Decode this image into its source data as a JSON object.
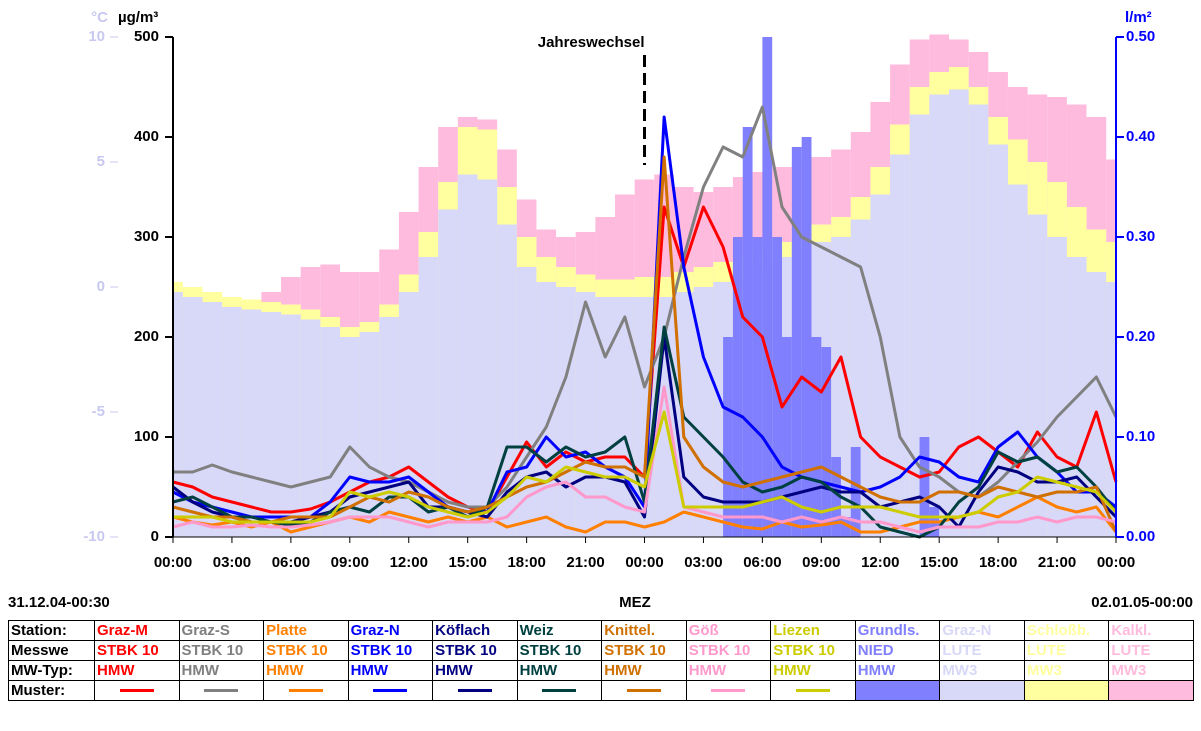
{
  "chart_data": {
    "type": "line",
    "annotation": "Jahreswechsel",
    "annotation_x": 24,
    "y_unit": "µg/m³",
    "y2_unit": "l/m²",
    "y3_unit": "°C",
    "x_label": "MEZ",
    "start_label": "31.12.04-00:30",
    "end_label": "02.01.05-00:00",
    "xlim": [
      0,
      48
    ],
    "xticks": [
      {
        "value": 0,
        "label": "00:00"
      },
      {
        "value": 3,
        "label": "03:00"
      },
      {
        "value": 6,
        "label": "06:00"
      },
      {
        "value": 9,
        "label": "09:00"
      },
      {
        "value": 12,
        "label": "12:00"
      },
      {
        "value": 15,
        "label": "15:00"
      },
      {
        "value": 18,
        "label": "18:00"
      },
      {
        "value": 21,
        "label": "21:00"
      },
      {
        "value": 24,
        "label": "00:00"
      },
      {
        "value": 27,
        "label": "03:00"
      },
      {
        "value": 30,
        "label": "06:00"
      },
      {
        "value": 33,
        "label": "09:00"
      },
      {
        "value": 36,
        "label": "12:00"
      },
      {
        "value": 39,
        "label": "15:00"
      },
      {
        "value": 42,
        "label": "18:00"
      },
      {
        "value": 45,
        "label": "21:00"
      },
      {
        "value": 48,
        "label": "00:00"
      }
    ],
    "ylim": [
      0,
      500
    ],
    "yticks": [
      0,
      100,
      200,
      300,
      400,
      500
    ],
    "y2lim": [
      0,
      0.5
    ],
    "y2ticks": [
      {
        "value": 0,
        "label": "0.00"
      },
      {
        "value": 0.1,
        "label": "0.10"
      },
      {
        "value": 0.2,
        "label": "0.20"
      },
      {
        "value": 0.3,
        "label": "0.30"
      },
      {
        "value": 0.4,
        "label": "0.40"
      },
      {
        "value": 0.5,
        "label": "0.50"
      }
    ],
    "y3lim": [
      -10,
      10
    ],
    "y3ticks": [
      -10,
      -5,
      0,
      5,
      10
    ],
    "x": [
      0,
      1,
      2,
      3,
      4,
      5,
      6,
      7,
      8,
      9,
      10,
      11,
      12,
      13,
      14,
      15,
      16,
      17,
      18,
      19,
      20,
      21,
      22,
      23,
      24,
      25,
      26,
      27,
      28,
      29,
      30,
      31,
      32,
      33,
      34,
      35,
      36,
      37,
      38,
      39,
      40,
      41,
      42,
      43,
      44,
      45,
      46,
      47,
      48
    ],
    "table_labels": [
      "Station:",
      "Messwe",
      "MW-Typ:",
      "Muster:"
    ],
    "series": [
      {
        "name": "Graz-M",
        "measure": "STBK 10",
        "mw_type": "HMW",
        "color": "#ff0000",
        "kind": "line",
        "values": [
          55,
          50,
          40,
          35,
          30,
          25,
          25,
          28,
          35,
          45,
          55,
          60,
          70,
          55,
          40,
          30,
          25,
          60,
          95,
          70,
          85,
          75,
          80,
          80,
          60,
          330,
          270,
          330,
          290,
          220,
          200,
          130,
          160,
          145,
          180,
          100,
          80,
          70,
          60,
          65,
          90,
          100,
          85,
          70,
          105,
          80,
          70,
          125,
          55
        ]
      },
      {
        "name": "Graz-S",
        "measure": "STBK 10",
        "mw_type": "HMW",
        "color": "#808080",
        "kind": "line",
        "values": [
          65,
          65,
          72,
          65,
          60,
          55,
          50,
          55,
          60,
          90,
          70,
          60,
          55,
          45,
          35,
          30,
          30,
          50,
          80,
          110,
          160,
          235,
          180,
          220,
          150,
          200,
          280,
          350,
          390,
          380,
          430,
          330,
          300,
          290,
          280,
          270,
          200,
          100,
          70,
          60,
          45,
          40,
          55,
          75,
          95,
          120,
          140,
          160,
          120
        ]
      },
      {
        "name": "Platte",
        "measure": "STBK 10",
        "mw_type": "HMW",
        "color": "#ff8000",
        "kind": "line",
        "values": [
          20,
          15,
          12,
          15,
          10,
          15,
          5,
          10,
          15,
          20,
          15,
          25,
          20,
          15,
          20,
          15,
          20,
          10,
          15,
          20,
          10,
          5,
          15,
          15,
          10,
          15,
          25,
          20,
          15,
          10,
          8,
          15,
          10,
          12,
          15,
          5,
          5,
          10,
          15,
          15,
          20,
          25,
          20,
          30,
          40,
          30,
          25,
          30,
          5
        ]
      },
      {
        "name": "Graz-N",
        "measure": "STBK 10",
        "mw_type": "HMW",
        "color": "#0000ff",
        "kind": "line",
        "values": [
          45,
          35,
          30,
          25,
          20,
          20,
          20,
          20,
          35,
          60,
          55,
          55,
          60,
          45,
          30,
          25,
          25,
          65,
          70,
          100,
          80,
          85,
          70,
          60,
          30,
          420,
          270,
          180,
          130,
          120,
          100,
          70,
          60,
          55,
          50,
          45,
          50,
          60,
          80,
          75,
          60,
          55,
          90,
          105,
          80,
          65,
          45,
          45,
          30
        ]
      },
      {
        "name": "Köflach",
        "measure": "STBK 10",
        "mw_type": "HMW",
        "color": "#000080",
        "kind": "line",
        "values": [
          50,
          35,
          25,
          20,
          15,
          15,
          15,
          20,
          25,
          40,
          45,
          50,
          55,
          30,
          30,
          25,
          20,
          45,
          60,
          65,
          50,
          60,
          60,
          55,
          20,
          200,
          60,
          40,
          35,
          35,
          35,
          40,
          45,
          50,
          45,
          45,
          30,
          35,
          40,
          30,
          10,
          45,
          70,
          65,
          55,
          55,
          60,
          40,
          20
        ]
      },
      {
        "name": "Weiz",
        "measure": "STBK 10",
        "mw_type": "HMW",
        "color": "#004040",
        "kind": "line",
        "values": [
          35,
          40,
          30,
          20,
          20,
          15,
          12,
          15,
          25,
          30,
          25,
          40,
          40,
          25,
          30,
          20,
          30,
          90,
          90,
          75,
          90,
          80,
          85,
          100,
          35,
          210,
          120,
          100,
          80,
          55,
          45,
          50,
          60,
          55,
          40,
          30,
          10,
          5,
          0,
          10,
          35,
          50,
          85,
          75,
          80,
          65,
          70,
          50,
          25
        ]
      },
      {
        "name": "Knittel.",
        "measure": "STBK 10",
        "mw_type": "HMW",
        "color": "#d07000",
        "kind": "line",
        "values": [
          30,
          25,
          20,
          20,
          15,
          15,
          20,
          20,
          20,
          30,
          40,
          35,
          45,
          40,
          30,
          25,
          30,
          40,
          50,
          55,
          65,
          75,
          70,
          70,
          60,
          380,
          100,
          70,
          55,
          50,
          55,
          60,
          65,
          70,
          60,
          50,
          40,
          35,
          35,
          45,
          45,
          40,
          50,
          45,
          40,
          45,
          45,
          50,
          5
        ]
      },
      {
        "name": "Göß",
        "measure": "STBK 10",
        "mw_type": "HMW",
        "color": "#ff99cc",
        "kind": "line",
        "values": [
          10,
          15,
          10,
          10,
          12,
          10,
          10,
          12,
          15,
          20,
          20,
          20,
          15,
          10,
          15,
          15,
          15,
          20,
          40,
          50,
          55,
          40,
          40,
          30,
          25,
          150,
          30,
          25,
          20,
          20,
          20,
          15,
          20,
          15,
          20,
          15,
          15,
          10,
          5,
          10,
          10,
          10,
          15,
          15,
          20,
          15,
          20,
          20,
          15
        ]
      },
      {
        "name": "Liezen",
        "measure": "STBK 10",
        "mw_type": "HMW",
        "color": "#cccc00",
        "kind": "line",
        "values": [
          20,
          20,
          20,
          15,
          15,
          15,
          15,
          15,
          20,
          45,
          40,
          45,
          40,
          30,
          25,
          20,
          25,
          40,
          60,
          55,
          70,
          65,
          60,
          60,
          50,
          125,
          30,
          30,
          30,
          30,
          35,
          40,
          30,
          25,
          30,
          30,
          30,
          25,
          20,
          20,
          20,
          25,
          40,
          45,
          60,
          55,
          50,
          45,
          25
        ]
      },
      {
        "name": "Grundls.",
        "measure": "NIED",
        "mw_type": "HMW",
        "color": "#8080ff",
        "kind": "bar",
        "axis": "y2",
        "x": [
          28,
          28.5,
          29,
          29.5,
          30,
          30.5,
          31,
          31.5,
          32,
          32.5,
          33,
          33.5,
          34,
          34.5,
          38,
          38.5
        ],
        "values": [
          0.2,
          0.3,
          0.41,
          0.3,
          0.5,
          0.3,
          0.2,
          0.39,
          0.4,
          0.2,
          0.19,
          0.08,
          0.02,
          0.09,
          0.1,
          0.03
        ]
      },
      {
        "name": "Graz-N",
        "measure": "LUTE",
        "mw_type": "MW3",
        "color": "#d8d8f8",
        "kind": "area",
        "axis": "y3",
        "values": [
          -0.2,
          -0.4,
          -0.6,
          -0.8,
          -0.9,
          -1.0,
          -1.1,
          -1.3,
          -1.6,
          -2.0,
          -1.8,
          -1.2,
          -0.2,
          1.2,
          3.1,
          4.5,
          4.3,
          2.5,
          0.8,
          0.2,
          0.0,
          -0.2,
          -0.4,
          -0.4,
          -0.4,
          -0.4,
          -0.2,
          0.0,
          0.2,
          0.4,
          0.8,
          1.2,
          1.6,
          1.8,
          2.0,
          2.7,
          3.7,
          5.3,
          6.9,
          7.7,
          7.9,
          7.3,
          5.7,
          4.1,
          2.9,
          2.0,
          1.2,
          0.6,
          0.2
        ]
      },
      {
        "name": "Schloßb.",
        "measure": "LUTE",
        "mw_type": "MW3",
        "color": "#ffffa0",
        "kind": "area",
        "axis": "y3",
        "values": [
          0.2,
          0.0,
          -0.2,
          -0.4,
          -0.5,
          -0.6,
          -0.7,
          -0.9,
          -1.2,
          -1.6,
          -1.4,
          -0.7,
          0.5,
          2.2,
          4.2,
          6.4,
          6.3,
          4.0,
          2.0,
          1.2,
          0.8,
          0.5,
          0.3,
          0.3,
          0.4,
          0.4,
          0.6,
          0.8,
          1.0,
          1.2,
          1.5,
          1.8,
          2.2,
          2.5,
          2.8,
          3.6,
          4.8,
          6.5,
          8.0,
          8.6,
          8.8,
          8.0,
          6.8,
          5.9,
          5.0,
          4.2,
          3.2,
          2.3,
          1.8
        ]
      },
      {
        "name": "Kalkl.",
        "measure": "LUTE",
        "mw_type": "MW3",
        "color": "#ffbbdd",
        "kind": "area",
        "axis": "y3",
        "values": [
          -0.5,
          -0.7,
          -0.9,
          -1.0,
          -0.6,
          -0.2,
          0.4,
          0.8,
          0.9,
          0.6,
          0.6,
          1.5,
          3.0,
          4.8,
          6.4,
          6.8,
          6.7,
          5.5,
          3.5,
          2.3,
          2.0,
          2.2,
          2.8,
          3.7,
          4.3,
          4.5,
          4.0,
          3.8,
          4.0,
          4.4,
          4.6,
          4.8,
          5.0,
          5.2,
          5.5,
          6.2,
          7.4,
          8.9,
          9.9,
          10.1,
          9.9,
          9.4,
          8.6,
          8.0,
          7.7,
          7.6,
          7.3,
          6.8,
          5.1
        ]
      }
    ]
  }
}
